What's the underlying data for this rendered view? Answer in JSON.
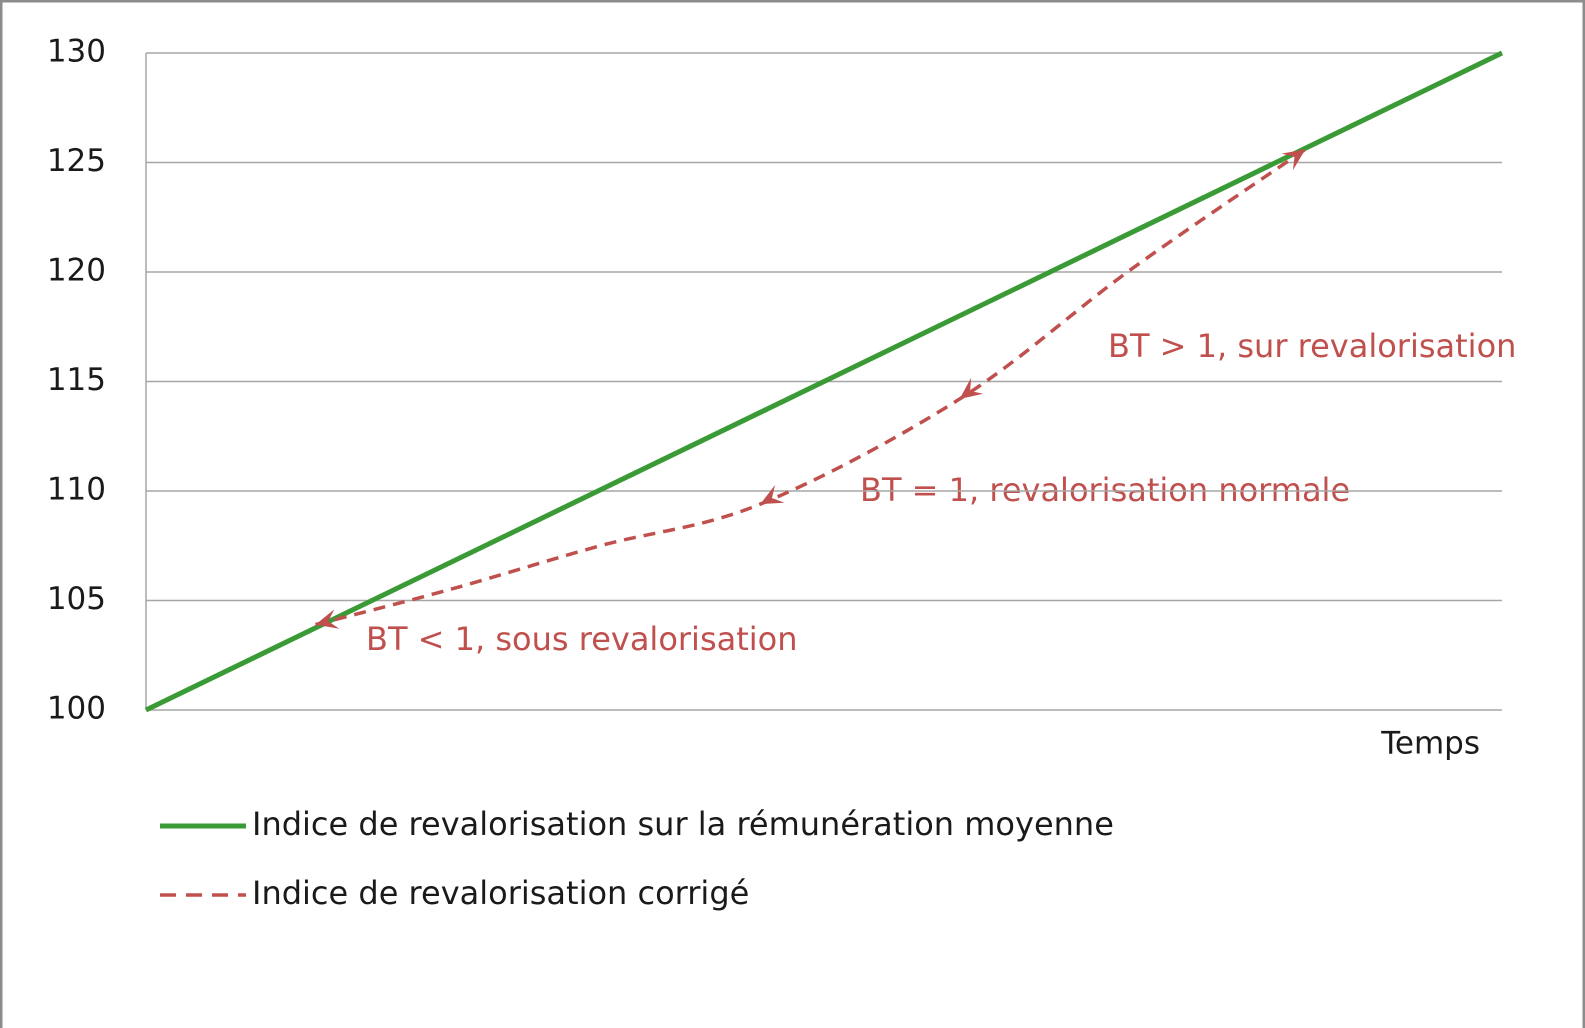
{
  "chart_data": {
    "type": "line",
    "x_label": "Temps",
    "xlim": [
      0,
      100
    ],
    "ylim": [
      100,
      130
    ],
    "yticks": [
      100,
      105,
      110,
      115,
      120,
      125,
      130
    ],
    "grid": true,
    "series": [
      {
        "name": "Indice de revalorisation sur la rémunération moyenne",
        "color": "#3a9a35",
        "style": "solid",
        "x": [
          0,
          100
        ],
        "values": [
          100,
          130
        ]
      },
      {
        "name": "Indice de revalorisation corrigé",
        "color": "#c0504d",
        "style": "dashed",
        "x": [
          12.5,
          22.4,
          33.5,
          45.3,
          60,
          72.6,
          85.5
        ],
        "values": [
          103.9,
          105.5,
          107.5,
          109.4,
          114.2,
          120.1,
          125.6
        ]
      }
    ],
    "annotations": [
      "BT > 1, sur revalorisation",
      "BT = 1, revalorisation normale",
      "BT < 1, sous revalorisation"
    ]
  }
}
